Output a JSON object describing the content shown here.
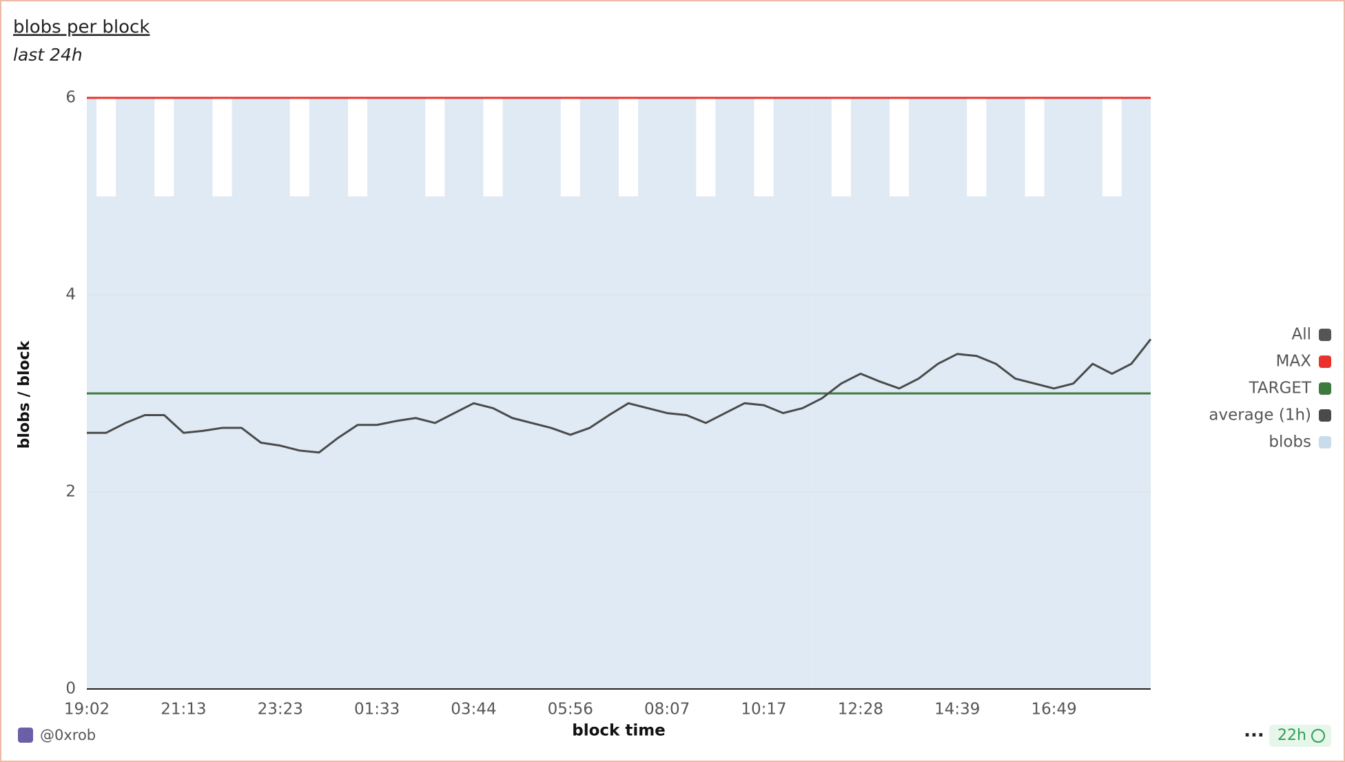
{
  "chart_data": {
    "type": "line",
    "title": "blobs per block",
    "subtitle": "last 24h",
    "x_label": "block time",
    "y_label": "blobs / block",
    "categories": [
      "19:02",
      null,
      null,
      null,
      null,
      "21:13",
      null,
      null,
      null,
      null,
      "23:23",
      null,
      null,
      null,
      null,
      "01:33",
      null,
      null,
      null,
      null,
      "03:44",
      null,
      null,
      null,
      null,
      "05:56",
      null,
      null,
      null,
      null,
      "08:07",
      null,
      null,
      null,
      null,
      "10:17",
      null,
      null,
      null,
      null,
      "12:28",
      null,
      null,
      null,
      null,
      "14:39",
      null,
      null,
      null,
      null,
      "16:49",
      null,
      null,
      null,
      null,
      null
    ],
    "ylim": [
      0,
      6
    ],
    "yticks": [
      0,
      2,
      4,
      6
    ],
    "grid": true,
    "legend_position": "right",
    "series": [
      {
        "name": "All",
        "color": "#555555"
      },
      {
        "name": "MAX",
        "color": "#e8322b",
        "value": 6
      },
      {
        "name": "TARGET",
        "color": "#3d7a3d",
        "value": 3
      },
      {
        "name": "average (1h)",
        "color": "#4a4a4a",
        "values": [
          2.6,
          2.6,
          2.7,
          2.78,
          2.78,
          2.6,
          2.62,
          2.65,
          2.65,
          2.5,
          2.47,
          2.42,
          2.4,
          2.55,
          2.68,
          2.68,
          2.72,
          2.75,
          2.7,
          2.8,
          2.9,
          2.85,
          2.75,
          2.7,
          2.65,
          2.58,
          2.65,
          2.78,
          2.9,
          2.85,
          2.8,
          2.78,
          2.7,
          2.8,
          2.9,
          2.88,
          2.8,
          2.85,
          2.95,
          3.1,
          3.2,
          3.12,
          3.05,
          3.15,
          3.3,
          3.4,
          3.38,
          3.3,
          3.15,
          3.1,
          3.05,
          3.1,
          3.3,
          3.2,
          3.3,
          3.55
        ]
      },
      {
        "name": "blobs",
        "color": "#c9dcec",
        "values": [
          6,
          5,
          6,
          6,
          5,
          6,
          6,
          5,
          6,
          6,
          6,
          5,
          6,
          6,
          5,
          6,
          6,
          6,
          5,
          6,
          6,
          5,
          6,
          6,
          6,
          5,
          6,
          6,
          5,
          6,
          6,
          6,
          5,
          6,
          6,
          5,
          6,
          6,
          6,
          5,
          6,
          6,
          5,
          6,
          6,
          6,
          5,
          6,
          6,
          5,
          6,
          6,
          6,
          5,
          6,
          6
        ]
      }
    ]
  },
  "footer": {
    "author": "@0xrob",
    "age": "22h",
    "menu": "···"
  }
}
